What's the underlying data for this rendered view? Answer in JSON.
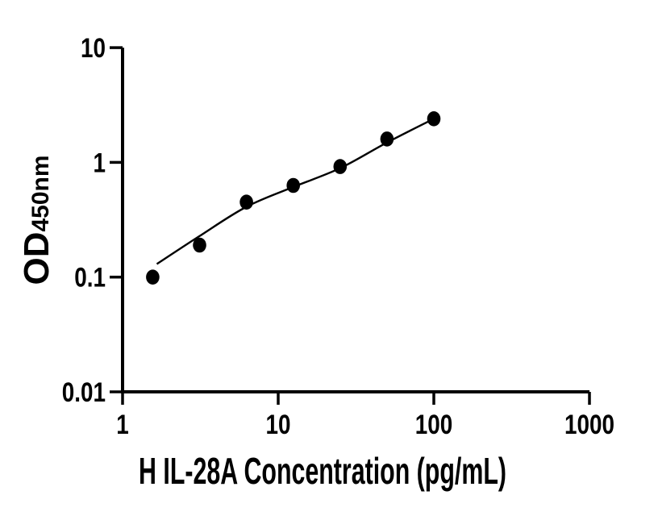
{
  "chart": {
    "x_title": "H IL-28A Concentration (pg/mL)",
    "y_title_main": "OD",
    "y_title_sub": "450nm"
  },
  "chart_data": {
    "type": "scatter",
    "title": "",
    "xlabel": "H IL-28A Concentration (pg/mL)",
    "ylabel": "OD450nm",
    "x_scale": "log10",
    "y_scale": "log10",
    "xlim": [
      1,
      1000
    ],
    "ylim": [
      0.01,
      10
    ],
    "grid": false,
    "legend": "none",
    "axis_color": "#000000",
    "marker_color": "#000000",
    "line_color": "#000000",
    "x_ticks": [
      "1",
      "10",
      "100",
      "1000"
    ],
    "y_ticks": [
      "0.01",
      "0.1",
      "1",
      "10"
    ],
    "series": [
      {
        "name": "standard_points",
        "type": "scatter",
        "marker": "filled-circle",
        "x": [
          1.5625,
          3.125,
          6.25,
          12.5,
          25,
          50,
          100
        ],
        "y": [
          0.1,
          0.19,
          0.45,
          0.63,
          0.92,
          1.6,
          2.4
        ]
      },
      {
        "name": "fit_curve",
        "type": "line",
        "x": [
          1.66,
          3.125,
          6.25,
          12.5,
          25,
          50,
          100
        ],
        "y": [
          0.13,
          0.228,
          0.41,
          0.61,
          0.89,
          1.49,
          2.4
        ]
      }
    ]
  }
}
